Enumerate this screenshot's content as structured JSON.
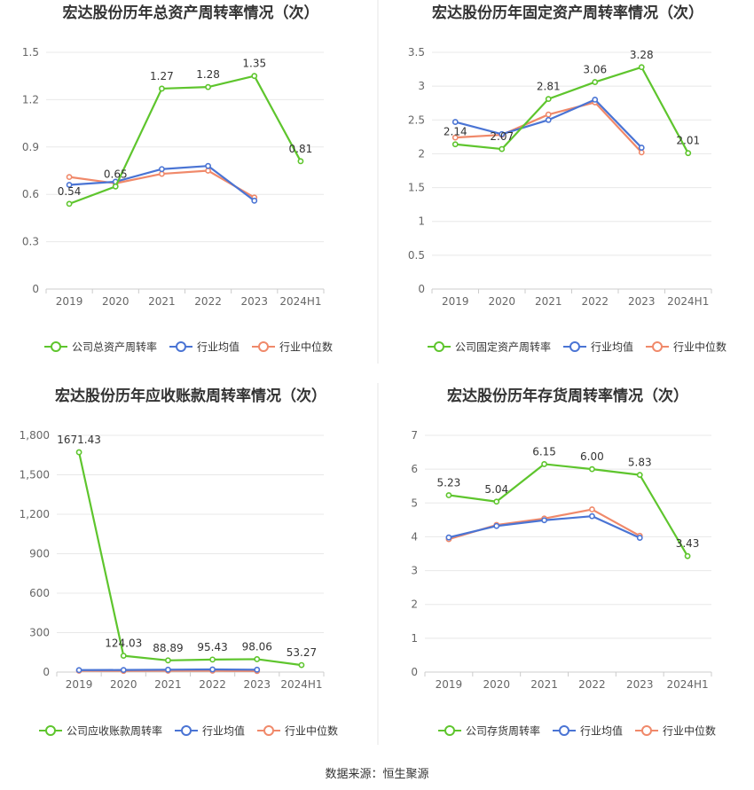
{
  "source_text": "数据来源：恒生聚源",
  "colors": {
    "company": "#5ec52d",
    "average": "#4a74d4",
    "median": "#f0896a"
  },
  "chart_data": [
    {
      "type": "line",
      "title": "宏达股份历年总资产周转率情况（次）",
      "categories": [
        "2019",
        "2020",
        "2021",
        "2022",
        "2023",
        "2024H1"
      ],
      "ylim": [
        0,
        1.5
      ],
      "yticks": [
        "0",
        "0.3",
        "0.6",
        "0.9",
        "1.2",
        "1.5"
      ],
      "ytick_values": [
        0,
        0.3,
        0.6,
        0.9,
        1.2,
        1.5
      ],
      "legend_position": "bottom",
      "series": [
        {
          "name": "公司总资产周转率",
          "color": "#5ec52d",
          "values": [
            0.54,
            0.65,
            1.27,
            1.28,
            1.35,
            0.81
          ],
          "labels": [
            "0.54",
            "0.65",
            "1.27",
            "1.28",
            "1.35",
            "0.81"
          ]
        },
        {
          "name": "行业均值",
          "color": "#4a74d4",
          "values": [
            0.66,
            0.68,
            0.76,
            0.78,
            0.56,
            null
          ]
        },
        {
          "name": "行业中位数",
          "color": "#f0896a",
          "values": [
            0.71,
            0.67,
            0.73,
            0.75,
            0.58,
            null
          ]
        }
      ]
    },
    {
      "type": "line",
      "title": "宏达股份历年固定资产周转率情况（次）",
      "categories": [
        "2019",
        "2020",
        "2021",
        "2022",
        "2023",
        "2024H1"
      ],
      "ylim": [
        0,
        3.5
      ],
      "yticks": [
        "0",
        "0.5",
        "1",
        "1.5",
        "2",
        "2.5",
        "3",
        "3.5"
      ],
      "ytick_values": [
        0,
        0.5,
        1,
        1.5,
        2,
        2.5,
        3,
        3.5
      ],
      "legend_position": "bottom",
      "series": [
        {
          "name": "公司固定资产周转率",
          "color": "#5ec52d",
          "values": [
            2.14,
            2.07,
            2.81,
            3.06,
            3.28,
            2.01
          ],
          "labels": [
            "2.14",
            "2.07",
            "2.81",
            "3.06",
            "3.28",
            "2.01"
          ]
        },
        {
          "name": "行业均值",
          "color": "#4a74d4",
          "values": [
            2.47,
            2.29,
            2.5,
            2.8,
            2.09,
            null
          ]
        },
        {
          "name": "行业中位数",
          "color": "#f0896a",
          "values": [
            2.24,
            2.28,
            2.58,
            2.76,
            2.02,
            null
          ]
        }
      ]
    },
    {
      "type": "line",
      "title": "宏达股份历年应收账款周转率情况（次）",
      "categories": [
        "2019",
        "2020",
        "2021",
        "2022",
        "2023",
        "2024H1"
      ],
      "ylim": [
        0,
        1800
      ],
      "yticks": [
        "0",
        "300",
        "600",
        "900",
        "1,200",
        "1,500",
        "1,800"
      ],
      "ytick_values": [
        0,
        300,
        600,
        900,
        1200,
        1500,
        1800
      ],
      "legend_position": "bottom",
      "series": [
        {
          "name": "公司应收账款周转率",
          "color": "#5ec52d",
          "values": [
            1671.43,
            124.03,
            88.89,
            95.43,
            98.06,
            53.27
          ],
          "labels": [
            "1671.43",
            "124.03",
            "88.89",
            "95.43",
            "98.06",
            "53.27"
          ]
        },
        {
          "name": "行业均值",
          "color": "#4a74d4",
          "values": [
            15,
            16,
            18,
            20,
            18,
            null
          ]
        },
        {
          "name": "行业中位数",
          "color": "#f0896a",
          "values": [
            10,
            9,
            10,
            10,
            8,
            null
          ]
        }
      ]
    },
    {
      "type": "line",
      "title": "宏达股份历年存货周转率情况（次）",
      "categories": [
        "2019",
        "2020",
        "2021",
        "2022",
        "2023",
        "2024H1"
      ],
      "ylim": [
        0,
        7
      ],
      "yticks": [
        "0",
        "1",
        "2",
        "3",
        "4",
        "5",
        "6",
        "7"
      ],
      "ytick_values": [
        0,
        1,
        2,
        3,
        4,
        5,
        6,
        7
      ],
      "legend_position": "bottom",
      "series": [
        {
          "name": "公司存货周转率",
          "color": "#5ec52d",
          "values": [
            5.23,
            5.04,
            6.15,
            6.0,
            5.83,
            3.43
          ],
          "labels": [
            "5.23",
            "5.04",
            "6.15",
            "6.00",
            "5.83",
            "3.43"
          ]
        },
        {
          "name": "行业均值",
          "color": "#4a74d4",
          "values": [
            3.98,
            4.32,
            4.49,
            4.61,
            3.97,
            null
          ]
        },
        {
          "name": "行业中位数",
          "color": "#f0896a",
          "values": [
            3.93,
            4.35,
            4.54,
            4.81,
            4.03,
            null
          ]
        }
      ]
    }
  ]
}
